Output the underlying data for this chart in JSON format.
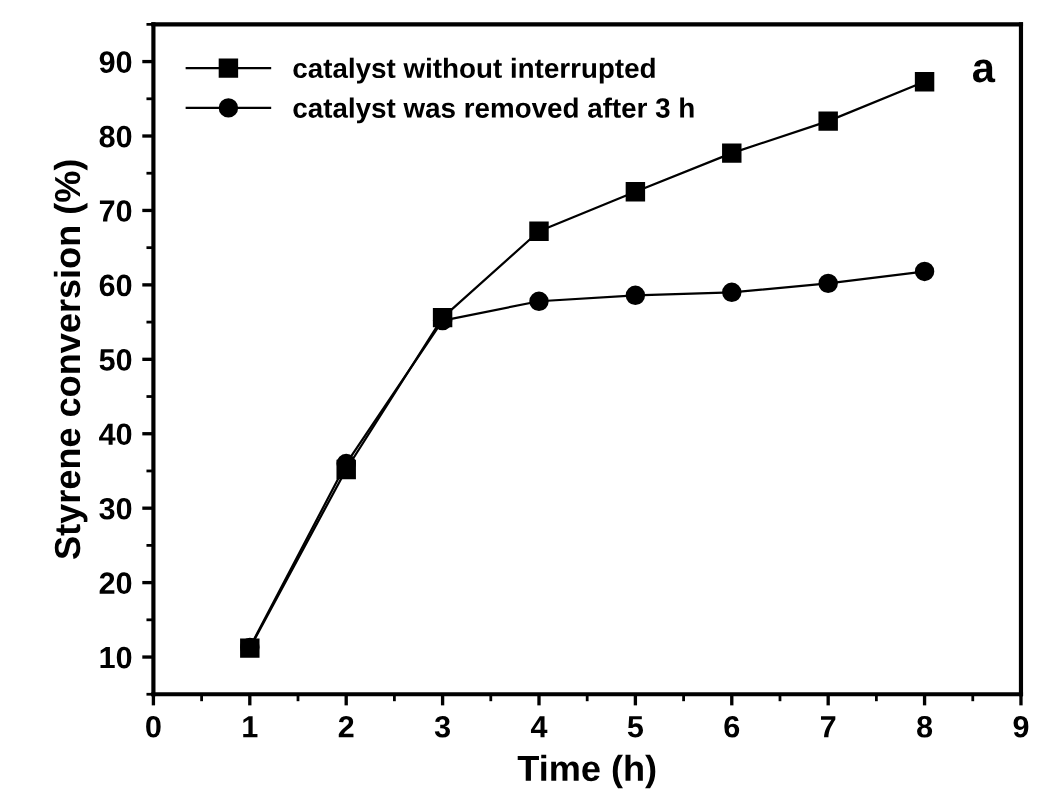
{
  "chart_data": {
    "type": "line",
    "xlabel": "Time (h)",
    "ylabel": "Styrene conversion (%)",
    "x": [
      1,
      2,
      3,
      4,
      5,
      6,
      7,
      8
    ],
    "series": [
      {
        "name": "catalyst without interrupted",
        "color": "#000000",
        "marker": "square",
        "values": [
          11.2,
          35.2,
          55.6,
          67.2,
          72.5,
          77.7,
          82.0,
          87.3
        ]
      },
      {
        "name": "catalyst was removed after 3 h",
        "color": "#000000",
        "marker": "circle",
        "values": [
          11.3,
          36.0,
          55.2,
          57.8,
          58.6,
          59.0,
          60.2,
          61.8
        ]
      }
    ],
    "xlim": [
      0,
      9
    ],
    "xticks": [
      0,
      1,
      2,
      3,
      4,
      5,
      6,
      7,
      8,
      9
    ],
    "ylim": [
      5,
      95
    ],
    "yticks": [
      10,
      20,
      30,
      40,
      50,
      60,
      70,
      80,
      90
    ],
    "annotations": [
      "a"
    ],
    "legend": "top left",
    "grid": false,
    "line_style": "solid"
  }
}
